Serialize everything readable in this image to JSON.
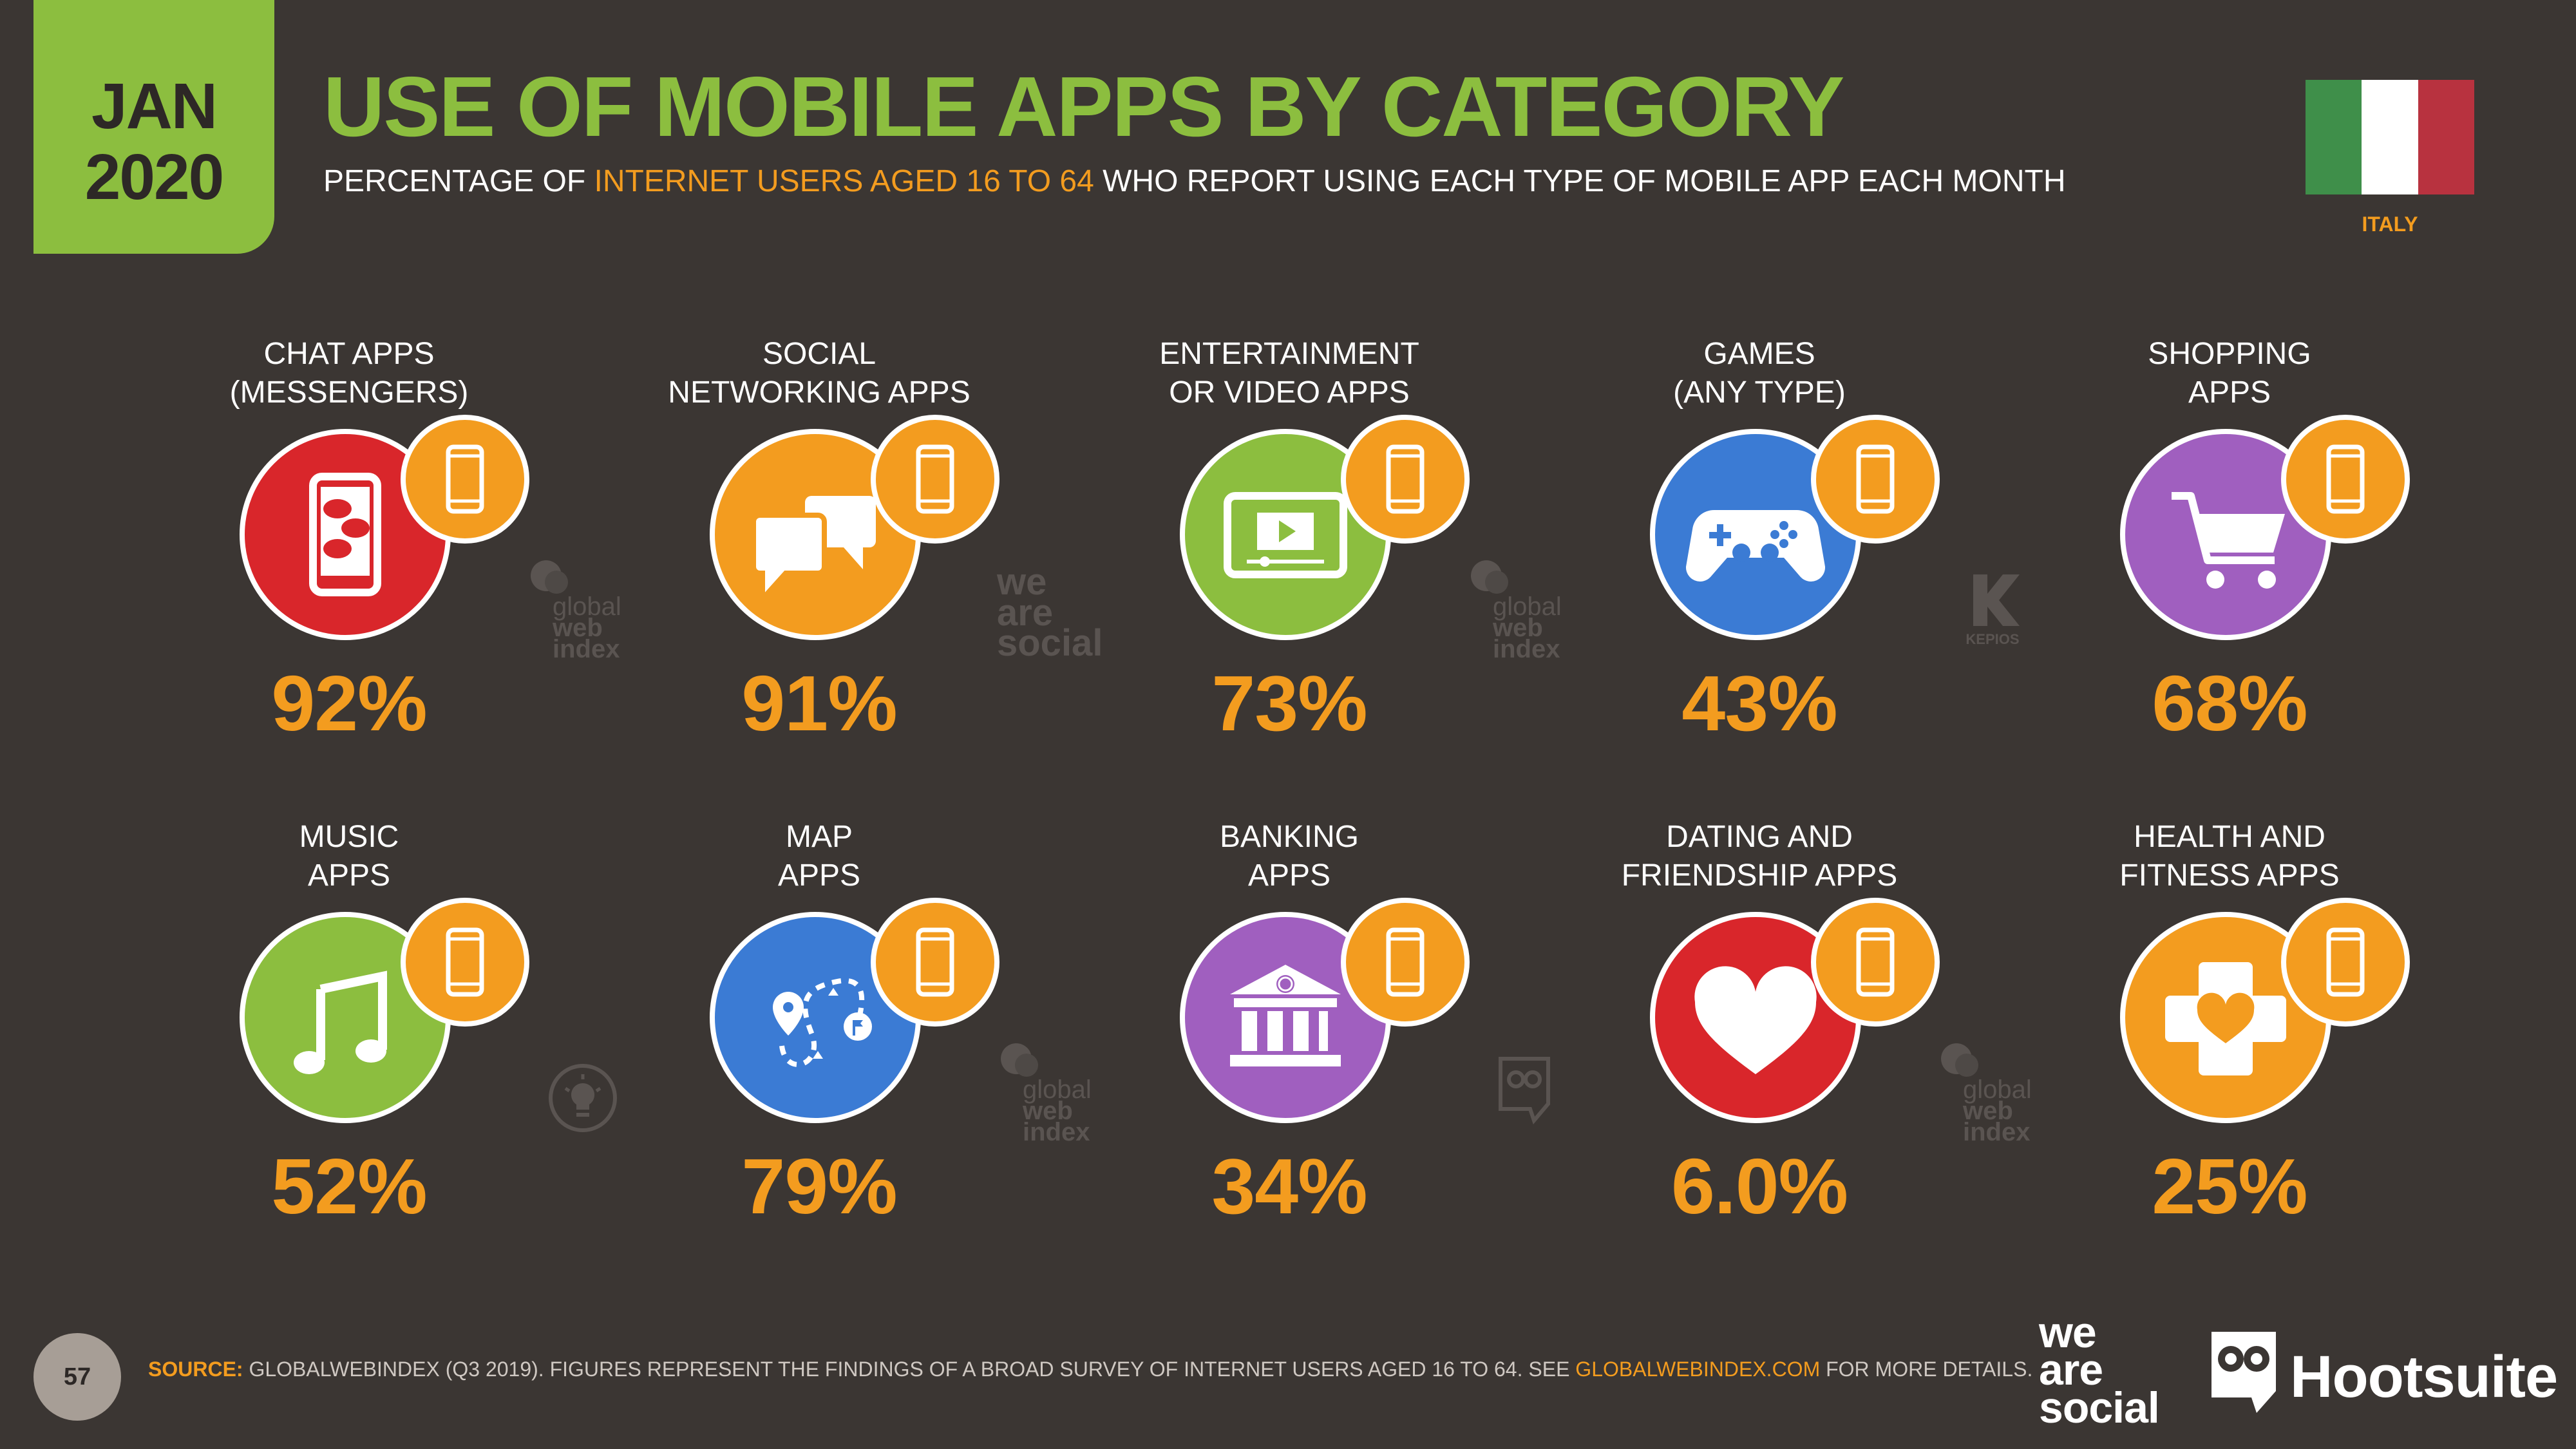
{
  "date_badge": {
    "month": "JAN",
    "year": "2020"
  },
  "title": "USE OF MOBILE APPS BY CATEGORY",
  "subtitle": {
    "before": "PERCENTAGE OF ",
    "highlight": "INTERNET USERS AGED 16 TO 64",
    "after": " WHO REPORT USING EACH TYPE OF MOBILE APP EACH MONTH"
  },
  "country": {
    "name": "ITALY",
    "flag_colors": [
      "#3f8f4a",
      "#ffffff",
      "#b8323f"
    ]
  },
  "colors": {
    "green": "#8cbe3f",
    "orange": "#f39c1f",
    "red": "#d9262b",
    "blue": "#3b7bd4",
    "purple": "#a05fbf",
    "background": "#3b3633"
  },
  "categories": [
    {
      "label_line1": "CHAT APPS",
      "label_line2": "(MESSENGERS)",
      "value": "92%",
      "icon": "chat-phone-icon",
      "color": "#d9262b"
    },
    {
      "label_line1": "SOCIAL",
      "label_line2": "NETWORKING APPS",
      "value": "91%",
      "icon": "speech-bubbles-icon",
      "color": "#f39c1f"
    },
    {
      "label_line1": "ENTERTAINMENT",
      "label_line2": "OR VIDEO APPS",
      "value": "73%",
      "icon": "video-screen-icon",
      "color": "#8cbe3f"
    },
    {
      "label_line1": "GAMES",
      "label_line2": "(ANY TYPE)",
      "value": "43%",
      "icon": "gamepad-icon",
      "color": "#3b7bd4"
    },
    {
      "label_line1": "SHOPPING",
      "label_line2": "APPS",
      "value": "68%",
      "icon": "shopping-cart-icon",
      "color": "#a05fbf"
    },
    {
      "label_line1": "MUSIC",
      "label_line2": "APPS",
      "value": "52%",
      "icon": "music-note-icon",
      "color": "#8cbe3f"
    },
    {
      "label_line1": "MAP",
      "label_line2": "APPS",
      "value": "79%",
      "icon": "map-route-icon",
      "color": "#3b7bd4"
    },
    {
      "label_line1": "BANKING",
      "label_line2": "APPS",
      "value": "34%",
      "icon": "bank-icon",
      "color": "#a05fbf"
    },
    {
      "label_line1": "DATING AND",
      "label_line2": "FRIENDSHIP APPS",
      "value": "6.0%",
      "icon": "heart-icon",
      "color": "#d9262b"
    },
    {
      "label_line1": "HEALTH AND",
      "label_line2": "FITNESS APPS",
      "value": "25%",
      "icon": "health-cross-icon",
      "color": "#f39c1f"
    }
  ],
  "watermarks": {
    "gwi_line1": "global",
    "gwi_line2": "web",
    "gwi_line3": "index",
    "was_line1": "we",
    "was_line2": "are",
    "was_line3": "social",
    "kepios": "KEPIOS"
  },
  "footer": {
    "page_number": "57",
    "source_label": "SOURCE:",
    "source_before": " GLOBALWEBINDEX (Q3 2019). FIGURES REPRESENT THE FINDINGS OF A BROAD SURVEY OF INTERNET USERS AGED 16 TO 64. SEE ",
    "source_link": "GLOBALWEBINDEX.COM",
    "source_after": " FOR MORE DETAILS.",
    "logo_was_line1": "we",
    "logo_was_line2": "are",
    "logo_was_line3": "social",
    "logo_hootsuite": "Hootsuite"
  }
}
